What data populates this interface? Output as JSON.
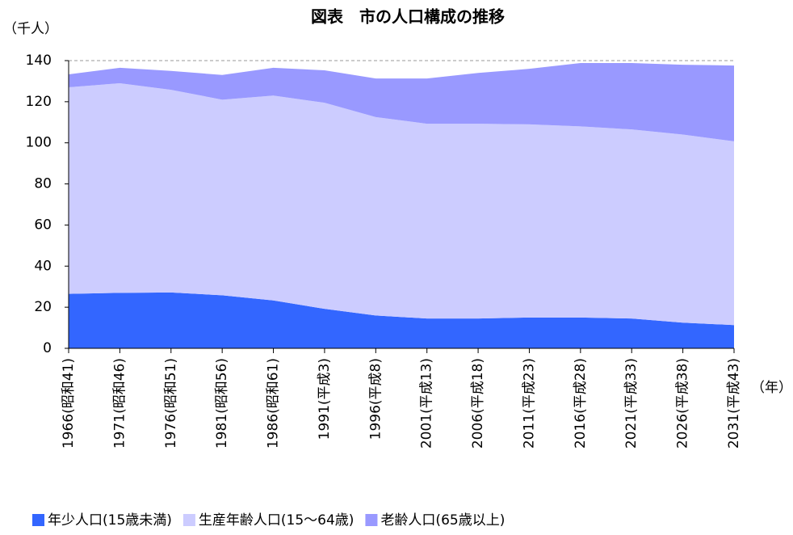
{
  "chart_data": {
    "type": "stacked-area",
    "title": "図表　市の人口構成の推移",
    "y_label": "（千人）",
    "x_label": "（年）",
    "categories": [
      "1966(昭和41)",
      "1971(昭和46)",
      "1976(昭和51)",
      "1981(昭和56)",
      "1986(昭和61)",
      "1991(平成3)",
      "1996(平成8)",
      "2001(平成13)",
      "2006(平成18)",
      "2011(平成23)",
      "2016(平成28)",
      "2021(平成33)",
      "2026(平成38)",
      "2031(平成43)"
    ],
    "series": [
      {
        "name": "年少人口(15歳未満)",
        "color": "#3366ff",
        "values": [
          26.5,
          27,
          27.2,
          25.8,
          23.3,
          19.2,
          16,
          14.5,
          14.5,
          15,
          15,
          14.5,
          12.5,
          11.3
        ]
      },
      {
        "name": "生産年齢人口(15～64歳)",
        "color": "#ccccff",
        "values": [
          100.5,
          102,
          98.6,
          95.2,
          99.7,
          100.3,
          96.5,
          94.8,
          94.8,
          94,
          93,
          92,
          91.5,
          89.4
        ]
      },
      {
        "name": "老齢人口(65歳以上)",
        "color": "#9999ff",
        "values": [
          6.3,
          7.5,
          9.2,
          12,
          13.5,
          15.8,
          18.8,
          22,
          24.7,
          27,
          30.8,
          32.3,
          34,
          36.9
        ]
      }
    ],
    "ylim": [
      0,
      140
    ],
    "yticks": [
      0,
      20,
      40,
      60,
      80,
      100,
      120,
      140
    ]
  }
}
